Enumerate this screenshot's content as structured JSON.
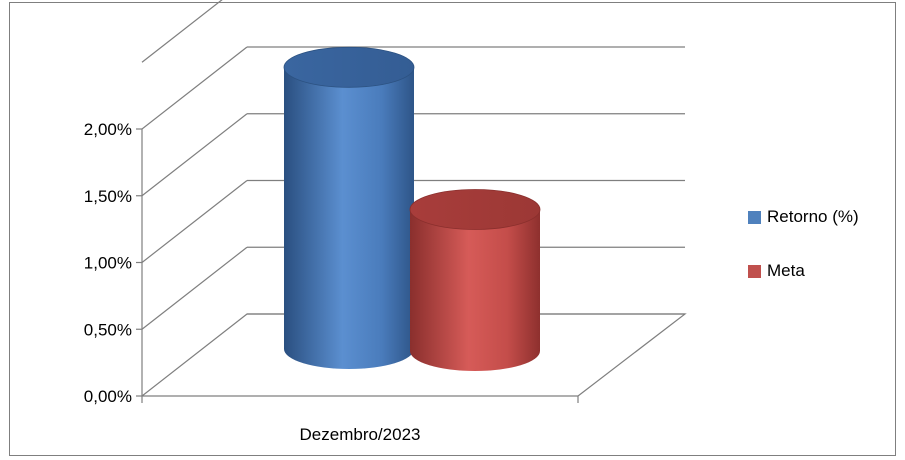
{
  "chart_data": {
    "type": "bar",
    "categories": [
      "Dezembro/2023"
    ],
    "series": [
      {
        "name": "Retorno (%)",
        "values": [
          2.11
        ],
        "color": "#4f81bd"
      },
      {
        "name": "Meta",
        "values": [
          1.06
        ],
        "color": "#c0504d"
      }
    ],
    "yticks": [
      "0,00%",
      "0,50%",
      "1,00%",
      "1,50%",
      "2,00%"
    ],
    "ylim": [
      0,
      2.5
    ],
    "grid": true,
    "legend": "right",
    "title": "",
    "xlabel": "",
    "ylabel": ""
  }
}
